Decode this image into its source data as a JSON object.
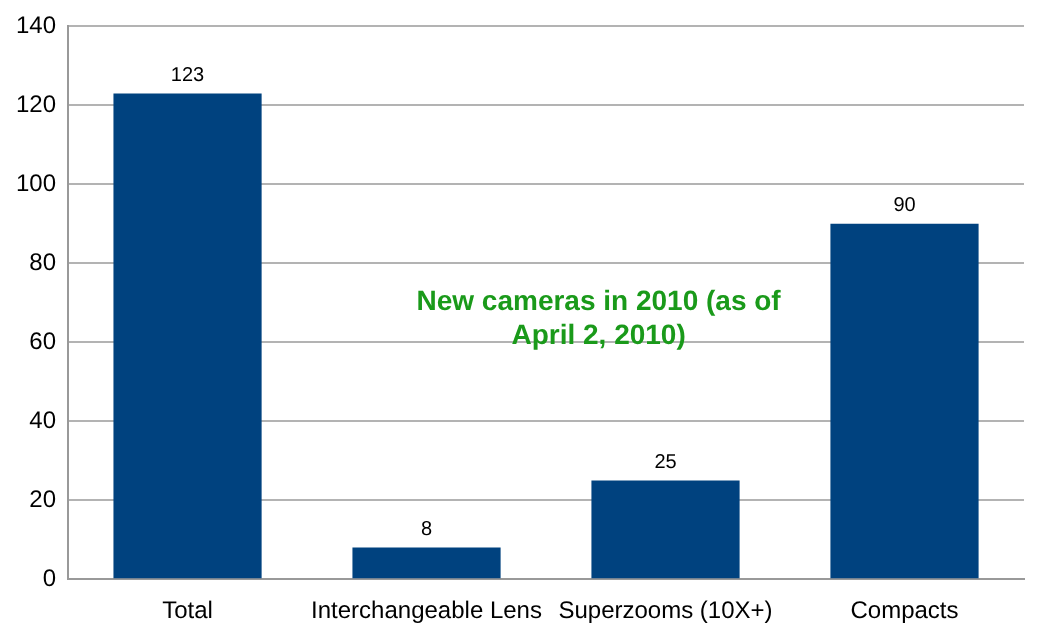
{
  "chart_data": {
    "type": "bar",
    "title": "New cameras in 2010 (as of April 2, 2010)",
    "categories": [
      "Total",
      "Interchangeable Lens",
      "Superzooms (10X+)",
      "Compacts"
    ],
    "values": [
      123,
      8,
      25,
      90
    ],
    "color": "#00427f",
    "ylim": [
      0,
      140
    ],
    "yticks": [
      0,
      20,
      40,
      60,
      80,
      100,
      120,
      140
    ],
    "grid": "y",
    "data_labels": true
  }
}
